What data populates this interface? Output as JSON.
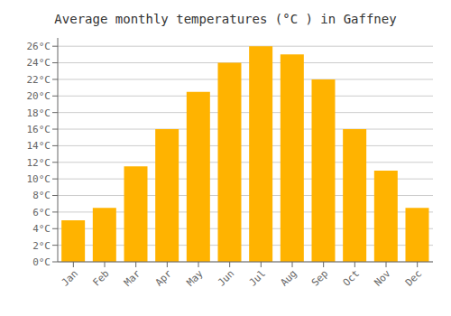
{
  "chart_data": {
    "type": "bar",
    "title": "Average monthly temperatures (°C ) in Gaffney",
    "categories": [
      "Jan",
      "Feb",
      "Mar",
      "Apr",
      "May",
      "Jun",
      "Jul",
      "Aug",
      "Sep",
      "Oct",
      "Nov",
      "Dec"
    ],
    "values": [
      5,
      6.5,
      11.5,
      16,
      20.5,
      24,
      26,
      25,
      22,
      16,
      11,
      6.5
    ],
    "color": "#FFB300",
    "ylim": [
      0,
      27
    ],
    "yticks": [
      {
        "value": 0,
        "label": "0°C"
      },
      {
        "value": 2,
        "label": "2°C"
      },
      {
        "value": 4,
        "label": "4°C"
      },
      {
        "value": 6,
        "label": "6°C"
      },
      {
        "value": 8,
        "label": "8°C"
      },
      {
        "value": 10,
        "label": "10°C"
      },
      {
        "value": 12,
        "label": "12°C"
      },
      {
        "value": 14,
        "label": "14°C"
      },
      {
        "value": 16,
        "label": "16°C"
      },
      {
        "value": 18,
        "label": "18°C"
      },
      {
        "value": 20,
        "label": "20°C"
      },
      {
        "value": 22,
        "label": "22°C"
      },
      {
        "value": 24,
        "label": "24°C"
      },
      {
        "value": 26,
        "label": "26°C"
      }
    ],
    "grid": true
  }
}
